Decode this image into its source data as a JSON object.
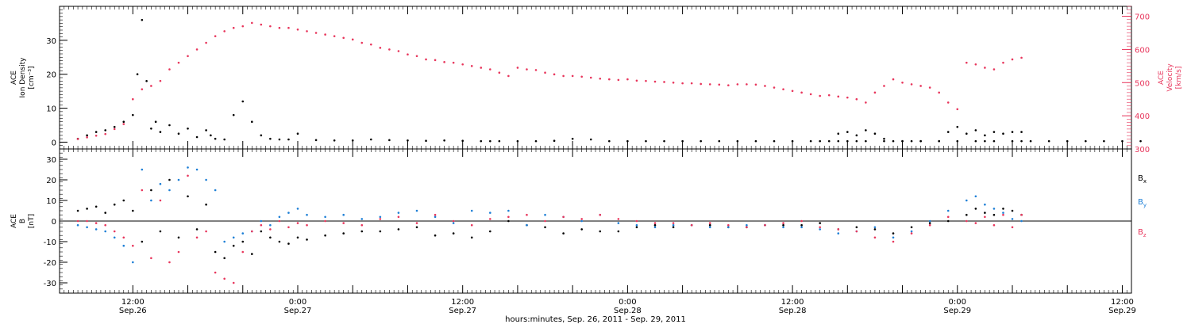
{
  "chart_data": [
    {
      "type": "scatter",
      "title": "",
      "ylabel_lines": [
        "ACE",
        "Ion Density",
        "[cm⁻³]"
      ],
      "y2label_lines": [
        "ACE",
        "Velocity",
        "[km/s]"
      ],
      "ylim": [
        -2,
        40
      ],
      "y2lim": [
        300,
        730
      ],
      "yticks": [
        0,
        10,
        20,
        30
      ],
      "y2ticks": [
        300,
        400,
        500,
        600,
        700
      ],
      "series": [
        {
          "axis": "left",
          "color": "#000000",
          "x": [
            0,
            2,
            4,
            6,
            8,
            10,
            12,
            13,
            14,
            15,
            16,
            17,
            18,
            20,
            22,
            24,
            26,
            28,
            29,
            30,
            32,
            34,
            36,
            38,
            40,
            42,
            44,
            46,
            48,
            52,
            56,
            60,
            64,
            68,
            72,
            76,
            80,
            84,
            88,
            90,
            92,
            96,
            100,
            104,
            108,
            112,
            116,
            120,
            124,
            128,
            132,
            136,
            140,
            144,
            148,
            152,
            156,
            160,
            162,
            164,
            166,
            168,
            170,
            172,
            176,
            180,
            184,
            188,
            192,
            196,
            198,
            200,
            204,
            206,
            208,
            212,
            216,
            220,
            224,
            228,
            232
          ],
          "y": [
            1.0,
            2.0,
            3.0,
            3.5,
            4.5,
            6.0,
            8.0,
            20.0,
            36.0,
            18.0,
            4.0,
            6.0,
            3.0,
            5.0,
            2.5,
            4.0,
            1.5,
            3.5,
            2.0,
            1.0,
            0.8,
            8.0,
            12.0,
            6.0,
            2.0,
            1.0,
            0.8,
            0.8,
            2.5,
            0.6,
            0.5,
            0.5,
            0.8,
            0.6,
            0.5,
            0.4,
            0.5,
            0.4,
            0.3,
            0.3,
            0.3,
            0.3,
            0.3,
            0.4,
            1.0,
            0.8,
            0.3,
            0.3,
            0.3,
            0.3,
            0.3,
            0.3,
            0.3,
            0.3,
            0.3,
            0.3,
            0.3,
            0.3,
            0.3,
            0.3,
            0.3,
            0.3,
            0.3,
            0.3,
            0.3,
            0.3,
            0.3,
            0.3,
            0.3,
            0.3,
            0.3,
            0.3,
            0.3,
            0.3,
            0.3,
            0.3,
            0.3,
            0.3,
            0.3,
            0.3,
            0.3
          ]
        },
        {
          "axis": "left",
          "color": "#000000",
          "x": [
            166,
            168,
            170,
            172,
            174,
            176,
            178,
            180,
            182,
            184,
            188,
            190,
            192,
            194,
            196,
            198,
            200,
            202,
            204,
            206
          ],
          "y": [
            2.5,
            3.0,
            2.0,
            3.5,
            2.5,
            1.0,
            0.3,
            0.3,
            0.3,
            0.3,
            0.3,
            3.0,
            4.5,
            2.5,
            3.5,
            2.0,
            3.0,
            2.5,
            3.0,
            3.0
          ]
        },
        {
          "axis": "right",
          "color": "#e8365c",
          "x": [
            0,
            2,
            4,
            6,
            8,
            10,
            12,
            14,
            16,
            18,
            20,
            22,
            24,
            26,
            28,
            30,
            32,
            34,
            36,
            38,
            40,
            42,
            44,
            46,
            48,
            50,
            52,
            54,
            56,
            58,
            60,
            62,
            64,
            66,
            68,
            70,
            72,
            74,
            76,
            78,
            80,
            82,
            84,
            86,
            88,
            90,
            92,
            94,
            96,
            98,
            100,
            102,
            104,
            106,
            108,
            110,
            112,
            114,
            116,
            118,
            120,
            122,
            124,
            126,
            128,
            130,
            132,
            134,
            136,
            138,
            140,
            142,
            144,
            146,
            148,
            150,
            152,
            154,
            156,
            158,
            160,
            162,
            164,
            166,
            168,
            170,
            172,
            174,
            176,
            178,
            180,
            182,
            184,
            186,
            188,
            190,
            192,
            194,
            196,
            198,
            200,
            202,
            204,
            206
          ],
          "y": [
            330,
            335,
            340,
            345,
            360,
            375,
            450,
            480,
            490,
            505,
            540,
            560,
            580,
            600,
            620,
            640,
            655,
            665,
            670,
            680,
            675,
            670,
            665,
            665,
            660,
            655,
            650,
            645,
            640,
            635,
            630,
            620,
            615,
            605,
            600,
            595,
            585,
            580,
            570,
            568,
            562,
            560,
            555,
            550,
            545,
            540,
            530,
            520,
            545,
            540,
            538,
            530,
            525,
            520,
            520,
            518,
            515,
            512,
            510,
            508,
            510,
            506,
            505,
            503,
            502,
            500,
            498,
            498,
            496,
            495,
            494,
            492,
            495,
            495,
            494,
            490,
            485,
            480,
            475,
            470,
            465,
            460,
            462,
            458,
            455,
            450,
            440,
            470,
            490,
            510,
            500,
            495,
            490,
            485,
            470,
            440,
            420,
            560,
            555,
            545,
            540,
            560,
            570,
            575
          ]
        }
      ]
    },
    {
      "type": "scatter",
      "title": "",
      "ylabel_lines": [
        "ACE",
        "B",
        "[nT]"
      ],
      "ylim": [
        -35,
        35
      ],
      "yticks": [
        -30,
        -20,
        -10,
        0,
        10,
        20,
        30
      ],
      "legend": [
        "B",
        "B",
        "B"
      ],
      "legend_subscripts": [
        "x",
        "y",
        "z"
      ],
      "legend_colors": [
        "#000000",
        "#1d7fd6",
        "#e8365c"
      ],
      "legend_position": "right",
      "series": [
        {
          "color": "#000000",
          "x": [
            0,
            2,
            4,
            6,
            8,
            10,
            12,
            14,
            16,
            18,
            20,
            22,
            24,
            26,
            28,
            30,
            32,
            34,
            36,
            38,
            40,
            42,
            44,
            46,
            48,
            50,
            54,
            58,
            62,
            66,
            70,
            74,
            78,
            82,
            86,
            90,
            94,
            98,
            102,
            106,
            110,
            114,
            118,
            122,
            126,
            130,
            134,
            138,
            142,
            146,
            150,
            154,
            158,
            162,
            166,
            170,
            174,
            178,
            182,
            186,
            190,
            194,
            196,
            198,
            200,
            202,
            204,
            206
          ],
          "y": [
            5,
            6,
            7,
            4,
            8,
            10,
            5,
            -10,
            15,
            -5,
            20,
            -8,
            12,
            -4,
            8,
            -15,
            -18,
            -12,
            -10,
            -16,
            -5,
            -8,
            -10,
            -11,
            -8,
            -9,
            -7,
            -6,
            -5,
            -5,
            -4,
            -3,
            -7,
            -6,
            -8,
            -5,
            0,
            -2,
            -3,
            -6,
            -4,
            -5,
            -5,
            -3,
            -2,
            -3,
            -2,
            -2,
            -3,
            -3,
            -2,
            -2,
            -2,
            -1,
            -4,
            -3,
            -4,
            -6,
            -3,
            -1,
            0,
            3,
            6,
            4,
            3,
            6,
            5,
            3
          ]
        },
        {
          "color": "#1d7fd6",
          "x": [
            0,
            2,
            4,
            6,
            8,
            10,
            12,
            14,
            16,
            18,
            20,
            22,
            24,
            26,
            28,
            30,
            32,
            34,
            36,
            38,
            40,
            42,
            44,
            46,
            48,
            50,
            54,
            58,
            62,
            66,
            70,
            74,
            78,
            82,
            86,
            90,
            94,
            98,
            102,
            106,
            110,
            114,
            118,
            122,
            126,
            130,
            134,
            138,
            142,
            146,
            150,
            154,
            158,
            162,
            166,
            170,
            174,
            178,
            182,
            186,
            190,
            194,
            196,
            198,
            200,
            202,
            204,
            206
          ],
          "y": [
            -2,
            -3,
            -4,
            -5,
            -8,
            -12,
            -20,
            25,
            10,
            18,
            15,
            20,
            26,
            25,
            20,
            15,
            -10,
            -8,
            -6,
            -5,
            0,
            -2,
            2,
            4,
            6,
            3,
            2,
            3,
            1,
            2,
            4,
            5,
            2,
            -1,
            5,
            4,
            5,
            -2,
            3,
            2,
            0,
            3,
            -1,
            -2,
            -3,
            -2,
            -2,
            -3,
            -3,
            -2,
            -2,
            -3,
            -3,
            -4,
            -6,
            -5,
            -3,
            -8,
            -5,
            0,
            5,
            10,
            12,
            8,
            6,
            4,
            1,
            0
          ]
        },
        {
          "color": "#e8365c",
          "x": [
            0,
            2,
            4,
            6,
            8,
            10,
            12,
            14,
            16,
            18,
            20,
            22,
            24,
            26,
            28,
            30,
            32,
            34,
            36,
            38,
            40,
            42,
            44,
            46,
            48,
            50,
            54,
            58,
            62,
            66,
            70,
            74,
            78,
            82,
            86,
            90,
            94,
            98,
            102,
            106,
            110,
            114,
            118,
            122,
            126,
            130,
            134,
            138,
            142,
            146,
            150,
            154,
            158,
            162,
            166,
            170,
            174,
            178,
            182,
            186,
            190,
            194,
            196,
            198,
            200,
            202,
            204,
            206
          ],
          "y": [
            0,
            0,
            -1,
            -2,
            -5,
            -8,
            -12,
            15,
            -18,
            10,
            -20,
            -15,
            22,
            -8,
            -5,
            -25,
            -28,
            -30,
            -15,
            -5,
            -2,
            -4,
            0,
            -3,
            -1,
            -2,
            0,
            -1,
            -2,
            1,
            2,
            -1,
            3,
            0,
            -2,
            1,
            2,
            3,
            0,
            2,
            1,
            3,
            1,
            0,
            -1,
            -1,
            -2,
            -1,
            -2,
            -3,
            -2,
            -1,
            0,
            -3,
            -4,
            -5,
            -8,
            -10,
            -6,
            -2,
            2,
            0,
            -1,
            2,
            -2,
            3,
            -3,
            3
          ]
        }
      ]
    }
  ],
  "xaxis": {
    "xlim": [
      -4,
      230
    ],
    "major_ticks": [
      12,
      24,
      36,
      48,
      60,
      72,
      84,
      96,
      108,
      120,
      132,
      144,
      156,
      168,
      180,
      192,
      204,
      216,
      228
    ],
    "major_labels": [
      {
        "x": 12,
        "time": "12:00",
        "date": "Sep.26"
      },
      {
        "x": 48,
        "time": "0:00",
        "date": "Sep.27"
      },
      {
        "x": 84,
        "time": "12:00",
        "date": "Sep.27"
      },
      {
        "x": 120,
        "time": "0:00",
        "date": "Sep.28"
      },
      {
        "x": 156,
        "time": "12:00",
        "date": "Sep.28"
      },
      {
        "x": 192,
        "time": "0:00",
        "date": "Sep.29"
      },
      {
        "x": 228,
        "time": "12:00",
        "date": "Sep.29"
      }
    ],
    "title": "hours:minutes, Sep. 26, 2011 - Sep. 29, 2011"
  }
}
